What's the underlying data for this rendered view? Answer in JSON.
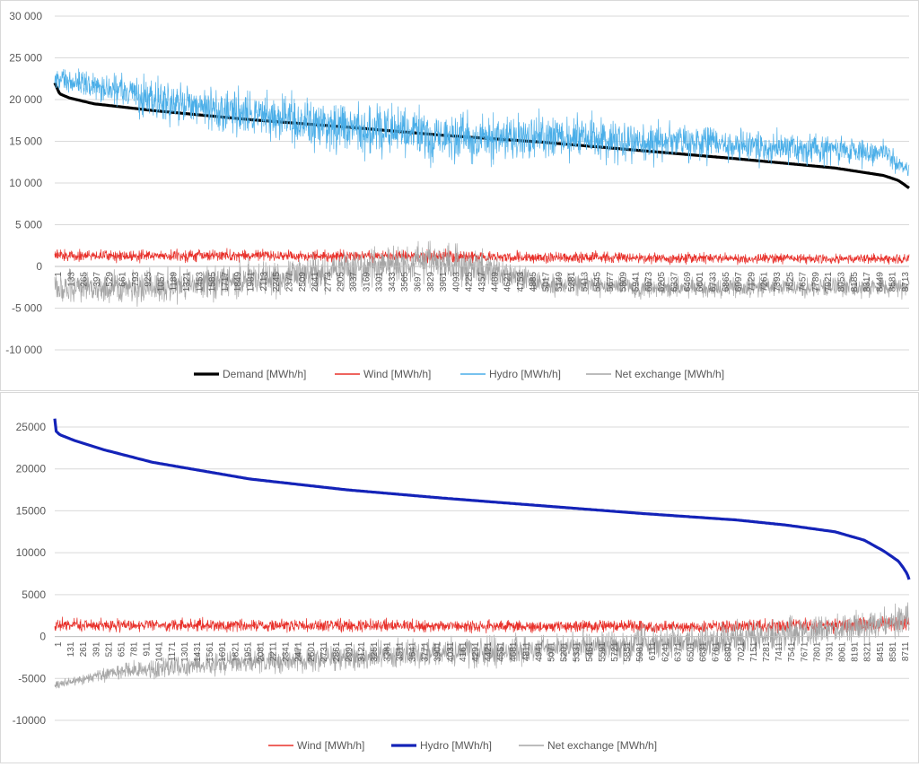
{
  "chart_data": [
    {
      "type": "line",
      "title": "",
      "xlabel": "",
      "ylabel": "",
      "ylim": [
        -10000,
        30000
      ],
      "yticks": [
        -10000,
        -5000,
        0,
        5000,
        10000,
        15000,
        20000,
        25000,
        30000
      ],
      "ytick_labels": [
        "-10 000",
        "-5 000",
        "0",
        "5 000",
        "10 000",
        "15 000",
        "20 000",
        "25 000",
        "30 000"
      ],
      "xtick_labels": [
        "1",
        "133",
        "265",
        "397",
        "529",
        "661",
        "793",
        "925",
        "1057",
        "1189",
        "1321",
        "1453",
        "1585",
        "1717",
        "1849",
        "1981",
        "2113",
        "2245",
        "2377",
        "2509",
        "2641",
        "2773",
        "2905",
        "3037",
        "3169",
        "3301",
        "3433",
        "3565",
        "3697",
        "3829",
        "3961",
        "4093",
        "4225",
        "4357",
        "4489",
        "4621",
        "4753",
        "4885",
        "5017",
        "5149",
        "5281",
        "5413",
        "5545",
        "5677",
        "5809",
        "5941",
        "6073",
        "6205",
        "6337",
        "6469",
        "6601",
        "6733",
        "6865",
        "6997",
        "7129",
        "7261",
        "7393",
        "7525",
        "7657",
        "7789",
        "7921",
        "8053",
        "8185",
        "8317",
        "8449",
        "8581",
        "8713"
      ],
      "x_range": [
        1,
        8760
      ],
      "grid": "horizontal",
      "legend_position": "bottom",
      "series": [
        {
          "name": "Demand [MWh/h]",
          "color": "#000000",
          "style": "bold",
          "x": [
            1,
            50,
            150,
            400,
            1000,
            2000,
            3000,
            4000,
            5000,
            6000,
            7000,
            8000,
            8500,
            8650,
            8760
          ],
          "values": [
            22000,
            20700,
            20200,
            19500,
            18700,
            17600,
            16700,
            15700,
            14900,
            13900,
            12900,
            11800,
            10900,
            10300,
            9400
          ]
        },
        {
          "name": "Wind [MWh/h]",
          "color": "#e8302a",
          "style": "noisy",
          "x": [
            1,
            2000,
            4000,
            6000,
            8760
          ],
          "center": [
            1300,
            1300,
            1200,
            1000,
            900
          ],
          "spread": [
            1000,
            1000,
            1000,
            900,
            800
          ]
        },
        {
          "name": "Hydro [MWh/h]",
          "color": "#4aaee8",
          "style": "noisy",
          "x": [
            1,
            500,
            1000,
            2000,
            3000,
            4000,
            5000,
            6000,
            7000,
            8000,
            8500,
            8760
          ],
          "center": [
            22500,
            21500,
            20000,
            18000,
            16500,
            15500,
            15500,
            15000,
            14500,
            14000,
            13500,
            11500
          ],
          "spread": [
            1800,
            2500,
            3500,
            4000,
            4500,
            4500,
            4000,
            3500,
            3000,
            2500,
            2000,
            1500
          ]
        },
        {
          "name": "Net exchange [MWh/h]",
          "color": "#a6a6a6",
          "style": "noisy",
          "x": [
            1,
            1000,
            2000,
            3000,
            3500,
            4000,
            4500,
            5000,
            6000,
            7000,
            8000,
            8760
          ],
          "center": [
            -2500,
            -2500,
            -1500,
            -500,
            500,
            500,
            -500,
            -2000,
            -2500,
            -2500,
            -2500,
            -2500
          ],
          "spread": [
            2500,
            2800,
            3000,
            3300,
            3500,
            3500,
            3000,
            1800,
            1800,
            1800,
            1800,
            1600
          ]
        }
      ]
    },
    {
      "type": "line",
      "title": "",
      "xlabel": "",
      "ylabel": "",
      "ylim": [
        -10000,
        25000
      ],
      "yticks": [
        -10000,
        -5000,
        0,
        5000,
        10000,
        15000,
        20000,
        25000
      ],
      "ytick_labels": [
        "-10000",
        "-5000",
        "0",
        "5000",
        "10000",
        "15000",
        "20000",
        "25000"
      ],
      "xtick_labels": [
        "1",
        "131",
        "261",
        "391",
        "521",
        "651",
        "781",
        "911",
        "1041",
        "1171",
        "1301",
        "1431",
        "1561",
        "1691",
        "1821",
        "1951",
        "2081",
        "2211",
        "2341",
        "2471",
        "2601",
        "2731",
        "2861",
        "2991",
        "3121",
        "3251",
        "3381",
        "3511",
        "3641",
        "3771",
        "3901",
        "4031",
        "4161",
        "4291",
        "4421",
        "4551",
        "4681",
        "4811",
        "4941",
        "5071",
        "5201",
        "5331",
        "5461",
        "5591",
        "5721",
        "5851",
        "5981",
        "6111",
        "6241",
        "6371",
        "6501",
        "6631",
        "6761",
        "6891",
        "7021",
        "7151",
        "7281",
        "7411",
        "7541",
        "7671",
        "7801",
        "7931",
        "8061",
        "8191",
        "8321",
        "8451",
        "8581",
        "8711"
      ],
      "x_range": [
        1,
        8760
      ],
      "grid": "horizontal",
      "legend_position": "bottom",
      "series": [
        {
          "name": "Wind [MWh/h]",
          "color": "#e8302a",
          "style": "noisy",
          "x": [
            1,
            3000,
            6000,
            7500,
            8760
          ],
          "center": [
            1400,
            1300,
            1200,
            1300,
            1500
          ],
          "spread": [
            1100,
            1100,
            1000,
            1200,
            1300
          ]
        },
        {
          "name": "Hydro [MWh/h]",
          "color": "#1423b8",
          "style": "bold",
          "x": [
            1,
            15,
            50,
            200,
            500,
            1000,
            2000,
            3000,
            4000,
            5000,
            6000,
            7000,
            7500,
            8000,
            8300,
            8500,
            8650,
            8700,
            8740,
            8760
          ],
          "values": [
            26000,
            24500,
            24100,
            23400,
            22300,
            20800,
            18800,
            17500,
            16500,
            15600,
            14700,
            13900,
            13300,
            12500,
            11500,
            10200,
            9000,
            8200,
            7500,
            6800
          ]
        },
        {
          "name": "Net exchange [MWh/h]",
          "color": "#a6a6a6",
          "style": "noisy",
          "x": [
            1,
            500,
            1000,
            2000,
            3000,
            4000,
            5000,
            6000,
            7000,
            8000,
            8500,
            8760
          ],
          "center": [
            -5800,
            -4500,
            -3800,
            -3000,
            -2500,
            -2000,
            -1500,
            -1000,
            -200,
            800,
            1500,
            2500
          ],
          "spread": [
            600,
            1200,
            1700,
            2000,
            2200,
            2400,
            2500,
            2700,
            2900,
            2800,
            2500,
            2500
          ]
        }
      ]
    }
  ]
}
